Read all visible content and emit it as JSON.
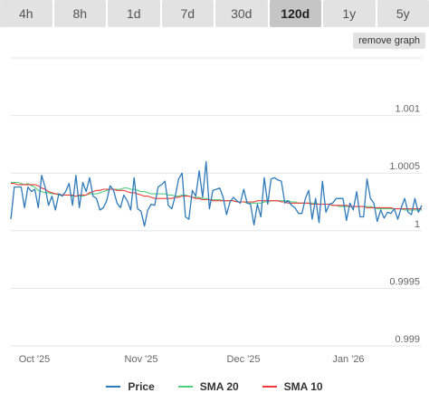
{
  "tabs": [
    {
      "label": "4h",
      "active": false
    },
    {
      "label": "8h",
      "active": false
    },
    {
      "label": "1d",
      "active": false
    },
    {
      "label": "7d",
      "active": false
    },
    {
      "label": "30d",
      "active": false
    },
    {
      "label": "120d",
      "active": true
    },
    {
      "label": "1y",
      "active": false
    },
    {
      "label": "5y",
      "active": false
    }
  ],
  "remove_graph_label": "remove graph",
  "colors": {
    "price": "#2f7ab8",
    "sma20": "#4fd07f",
    "sma10": "#ee3a3a",
    "grid": "#e6e6e6",
    "axis_text": "#666666"
  },
  "chart_data": {
    "type": "line",
    "x_labels": [
      "Oct '25",
      "Nov '25",
      "Dec '25",
      "Jan '26"
    ],
    "y_ticks": [
      "0.999",
      "0.9995",
      "1",
      "1.0005",
      "1.001"
    ],
    "ylim": [
      0.999,
      1.0015
    ],
    "grid": true,
    "legend_position": "bottom",
    "series": [
      {
        "name": "Price",
        "values": [
          1.0001,
          1.00038,
          1.00038,
          1.00038,
          1.0002,
          1.00038,
          1.00034,
          1.00036,
          1.0002,
          1.00048,
          1.00038,
          1.00022,
          1.0003,
          1.00018,
          1.00032,
          1.0003,
          1.00034,
          1.00041,
          1.00022,
          1.00048,
          1.0002,
          1.00042,
          1.00034,
          1.00046,
          1.0003,
          1.00028,
          1.00018,
          1.0002,
          1.00026,
          1.00039,
          1.00035,
          1.00024,
          1.0002,
          1.00031,
          1.00026,
          1.00018,
          1.00046,
          1.00019,
          1.00017,
          1.00004,
          1.00018,
          1.00023,
          1.00022,
          1.00038,
          1.0004,
          1.00043,
          1.00022,
          1.00019,
          1.0003,
          1.00045,
          1.0005,
          1.00012,
          1.0001,
          1.00035,
          1.0003,
          1.00052,
          1.00029,
          1.0006,
          1.00019,
          1.00035,
          1.00036,
          1.00037,
          1.00029,
          1.00014,
          1.00025,
          1.00029,
          1.00026,
          1.00024,
          1.00036,
          1.00024,
          1.00023,
          1.00005,
          1.00023,
          1.00012,
          1.00046,
          1.00023,
          1.00045,
          1.00046,
          1.00044,
          1.00043,
          1.00024,
          1.00026,
          1.00022,
          1.0002,
          1.00015,
          1.00015,
          1.00028,
          1.00035,
          1.0001,
          1.00028,
          1.00007,
          1.00043,
          1.00016,
          1.00023,
          1.00024,
          1.00028,
          1.00028,
          1.00028,
          1.00009,
          1.00024,
          1.00018,
          1.00034,
          1.00012,
          1.00012,
          1.00045,
          1.00028,
          1.00024,
          1.00008,
          1.00018,
          1.00011,
          1.00016,
          1.00015,
          1.00019,
          1.0001,
          1.0002,
          1.00028,
          1.00016,
          1.00014,
          1.00028,
          1.00016,
          1.00022
        ]
      },
      {
        "name": "SMA 20",
        "values": [
          1.00042,
          1.00042,
          1.00042,
          1.00041,
          1.0004,
          1.00041,
          1.00039,
          1.00038,
          1.00035,
          1.00034,
          1.00033,
          1.00033,
          1.00032,
          1.00032,
          1.00031,
          1.00031,
          1.00031,
          1.00031,
          1.0003,
          1.0003,
          1.0003,
          1.0003,
          1.00031,
          1.00032,
          1.00032,
          1.00032,
          1.00033,
          1.00034,
          1.00035,
          1.00036,
          1.00036,
          1.00036,
          1.00036,
          1.00037,
          1.00037,
          1.00036,
          1.00036,
          1.00035,
          1.00034,
          1.00034,
          1.00033,
          1.00032,
          1.00032,
          1.00032,
          1.00032,
          1.00032,
          1.00031,
          1.00031,
          1.0003,
          1.0003,
          1.00031,
          1.00031,
          1.0003,
          1.00029,
          1.00029,
          1.00029,
          1.00028,
          1.00028,
          1.00027,
          1.00027,
          1.00027,
          1.00027,
          1.00026,
          1.00026,
          1.00026,
          1.00026,
          1.00025,
          1.00025,
          1.00025,
          1.00024,
          1.00024,
          1.00024,
          1.00024,
          1.00024,
          1.00025,
          1.00025,
          1.00026,
          1.00026,
          1.00026,
          1.00026,
          1.00026,
          1.00026,
          1.00025,
          1.00025,
          1.00024,
          1.00024,
          1.00024,
          1.00024,
          1.00024,
          1.00024,
          1.00023,
          1.00023,
          1.00023,
          1.00023,
          1.00022,
          1.00022,
          1.00021,
          1.00021,
          1.00021,
          1.00021,
          1.00021,
          1.00021,
          1.00021,
          1.00021,
          1.00021,
          1.00021,
          1.0002,
          1.00019,
          1.00019,
          1.00019,
          1.00019,
          1.00019,
          1.00019,
          1.00019,
          1.00019,
          1.00018,
          1.00018,
          1.00018,
          1.00018,
          1.00018,
          1.00018
        ]
      },
      {
        "name": "SMA 10",
        "values": [
          1.00041,
          1.00041,
          1.0004,
          1.0004,
          1.0004,
          1.0004,
          1.0004,
          1.0004,
          1.00039,
          1.00037,
          1.00036,
          1.00034,
          1.00033,
          1.00032,
          1.00032,
          1.00031,
          1.00031,
          1.00031,
          1.00031,
          1.0003,
          1.00031,
          1.00031,
          1.00031,
          1.00033,
          1.00034,
          1.00035,
          1.00035,
          1.00036,
          1.00036,
          1.00036,
          1.00036,
          1.00035,
          1.00035,
          1.00035,
          1.00034,
          1.00033,
          1.00033,
          1.00032,
          1.00031,
          1.0003,
          1.0003,
          1.00029,
          1.00028,
          1.00028,
          1.00028,
          1.00028,
          1.00028,
          1.00028,
          1.00029,
          1.00029,
          1.0003,
          1.0003,
          1.0003,
          1.00029,
          1.00028,
          1.00028,
          1.00027,
          1.00027,
          1.00027,
          1.00026,
          1.00026,
          1.00026,
          1.00026,
          1.00026,
          1.00026,
          1.00026,
          1.00025,
          1.00025,
          1.00025,
          1.00025,
          1.00025,
          1.00025,
          1.00026,
          1.00026,
          1.00026,
          1.00026,
          1.00026,
          1.00026,
          1.00026,
          1.00025,
          1.00025,
          1.00024,
          1.00024,
          1.00024,
          1.00024,
          1.00024,
          1.00024,
          1.00024,
          1.00023,
          1.00023,
          1.00023,
          1.00023,
          1.00023,
          1.00023,
          1.00022,
          1.00022,
          1.00022,
          1.00022,
          1.00022,
          1.00021,
          1.00021,
          1.00021,
          1.00021,
          1.00021,
          1.0002,
          1.0002,
          1.0002,
          1.0002,
          1.0002,
          1.0002,
          1.0002,
          1.0002,
          1.00019,
          1.00019,
          1.00019,
          1.00019,
          1.00019,
          1.00019,
          1.00019,
          1.00019,
          1.00019
        ]
      }
    ]
  }
}
